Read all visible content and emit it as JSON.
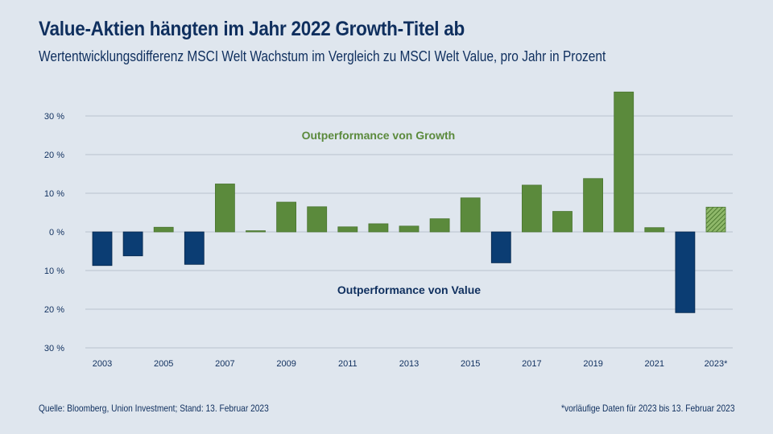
{
  "header": {
    "title": "Value-Aktien hängten im Jahr 2022 Growth-Titel ab",
    "subtitle": "Wertentwicklungsdifferenz MSCI Welt Wachstum im Vergleich zu MSCI Welt Value, pro Jahr in Prozent"
  },
  "footer": {
    "source": "Quelle: Bloomberg, Union Investment; Stand: 13. Februar 2023",
    "note": "*vorläufige Daten für 2023 bis 13. Februar 2023"
  },
  "colors": {
    "growth": "#5b8a3c",
    "value": "#0b3d73",
    "grid": "#b9c3cf",
    "text": "#0f2f5e"
  },
  "chart_data": {
    "type": "bar",
    "title": "Value-Aktien hängten im Jahr 2022 Growth-Titel ab",
    "subtitle": "Wertentwicklungsdifferenz MSCI Welt Wachstum im Vergleich zu MSCI Welt Value, pro Jahr in Prozent",
    "xlabel": "",
    "ylabel": "",
    "categories": [
      "2003",
      "2004",
      "2005",
      "2006",
      "2007",
      "2008",
      "2009",
      "2010",
      "2011",
      "2012",
      "2013",
      "2014",
      "2015",
      "2016",
      "2017",
      "2018",
      "2019",
      "2020",
      "2021",
      "2022",
      "2023*"
    ],
    "values": [
      -8.7,
      -6.2,
      1.2,
      -8.4,
      12.4,
      0.3,
      7.7,
      6.5,
      1.3,
      2.1,
      1.5,
      3.4,
      8.8,
      -8.0,
      12.1,
      5.3,
      13.8,
      36.2,
      1.1,
      -20.9,
      6.4
    ],
    "preliminary": [
      false,
      false,
      false,
      false,
      false,
      false,
      false,
      false,
      false,
      false,
      false,
      false,
      false,
      false,
      false,
      false,
      false,
      false,
      false,
      false,
      true
    ],
    "ylim": [
      -30,
      36
    ],
    "yticks": [
      30,
      20,
      10,
      0,
      -10,
      -20,
      -30
    ],
    "ytick_labels": [
      "30 %",
      "20 %",
      "10 %",
      "0 %",
      "10 %",
      "20 %",
      "30 %"
    ],
    "xtick_labels_shown": [
      "2003",
      "2005",
      "2007",
      "2009",
      "2011",
      "2013",
      "2015",
      "2017",
      "2019",
      "2021",
      "2023*"
    ],
    "grid": true,
    "annotations": [
      {
        "text": "Outperformance von Growth",
        "x": "2012",
        "y": 25,
        "color": "growth"
      },
      {
        "text": "Outperformance von Value",
        "x": "2013",
        "y": -15,
        "color": "value"
      }
    ],
    "legend": "none"
  }
}
